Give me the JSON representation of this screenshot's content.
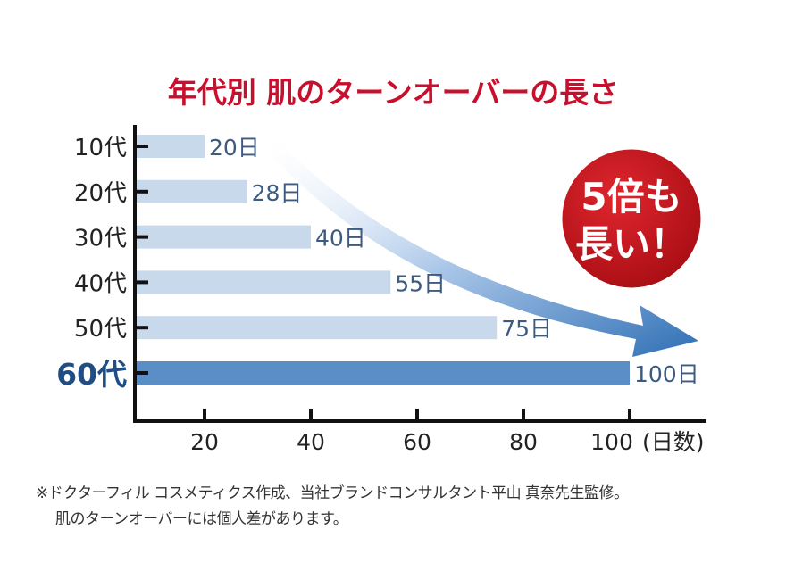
{
  "chart_data": {
    "type": "bar",
    "orientation": "horizontal",
    "title": "年代別 肌のターンオーバーの長さ",
    "categories": [
      "10代",
      "20代",
      "30代",
      "40代",
      "50代",
      "60代"
    ],
    "values": [
      20,
      28,
      40,
      55,
      75,
      100
    ],
    "data_labels": [
      "20日",
      "28日",
      "40日",
      "55日",
      "75日",
      "100日"
    ],
    "xlabel": "(日数)",
    "x_ticks": [
      20,
      40,
      60,
      80,
      100
    ],
    "xlim": [
      7,
      100
    ],
    "highlight_category": "60代",
    "grid": false,
    "annotation": {
      "line1": "5倍も",
      "line2": "長い！"
    },
    "colors": {
      "bar": "#c9d9ec",
      "bar_highlight": "#5b8ec7",
      "label": "#3d5a80",
      "highlight_label": "#1f4e86",
      "title": "#c8102e",
      "badge": "#c4121a",
      "arrow": "#2f6fb5"
    }
  },
  "footnote": {
    "line1": "※ドクターフィル コスメティクス作成、当社ブランドコンサルタント平山 真奈先生監修。",
    "line2": "肌のターンオーバーには個人差があります。"
  }
}
